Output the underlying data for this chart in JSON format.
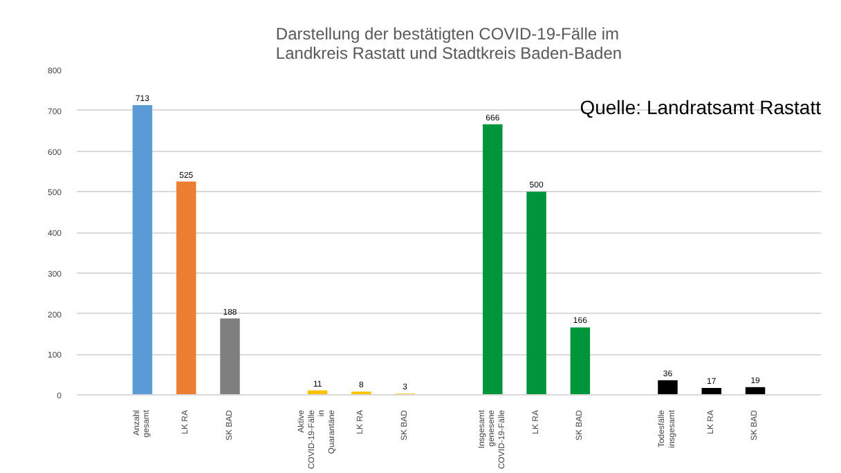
{
  "chart_data": {
    "type": "bar",
    "title": "Darstellung der bestätigten COVID-19-Fälle im\nLandkreis Rastatt und Stadtkreis Baden-Baden",
    "categories": [
      "Anzahl gesamt",
      "LK RA",
      "SK BAD",
      null,
      "Aktive COVID-19-Fälle in Quarantäne",
      "LK RA",
      "SK BAD",
      null,
      "Insgesamt genesene COVID-19-Fälle",
      "LK RA",
      "SK BAD",
      null,
      "Todesfälle insgesamt",
      "LK RA",
      "SK BAD"
    ],
    "values": [
      713,
      525,
      188,
      null,
      11,
      8,
      3,
      null,
      666,
      500,
      166,
      null,
      36,
      17,
      19
    ],
    "colors": [
      "#5b9bd5",
      "#ed7d31",
      "#7f7f7f",
      "#ffffff",
      "#ffc000",
      "#ffc000",
      "#ffc000",
      "#ffffff",
      "#00953b",
      "#00953b",
      "#00953b",
      "#ffffff",
      "#000000",
      "#000000",
      "#000000"
    ],
    "ylim": [
      0,
      800
    ],
    "yticks": [
      0,
      100,
      200,
      300,
      400,
      500,
      600,
      700,
      800
    ],
    "grid": "y",
    "data_labels": true,
    "annotations": [
      "Quelle: Landratsamt Rastatt"
    ]
  }
}
